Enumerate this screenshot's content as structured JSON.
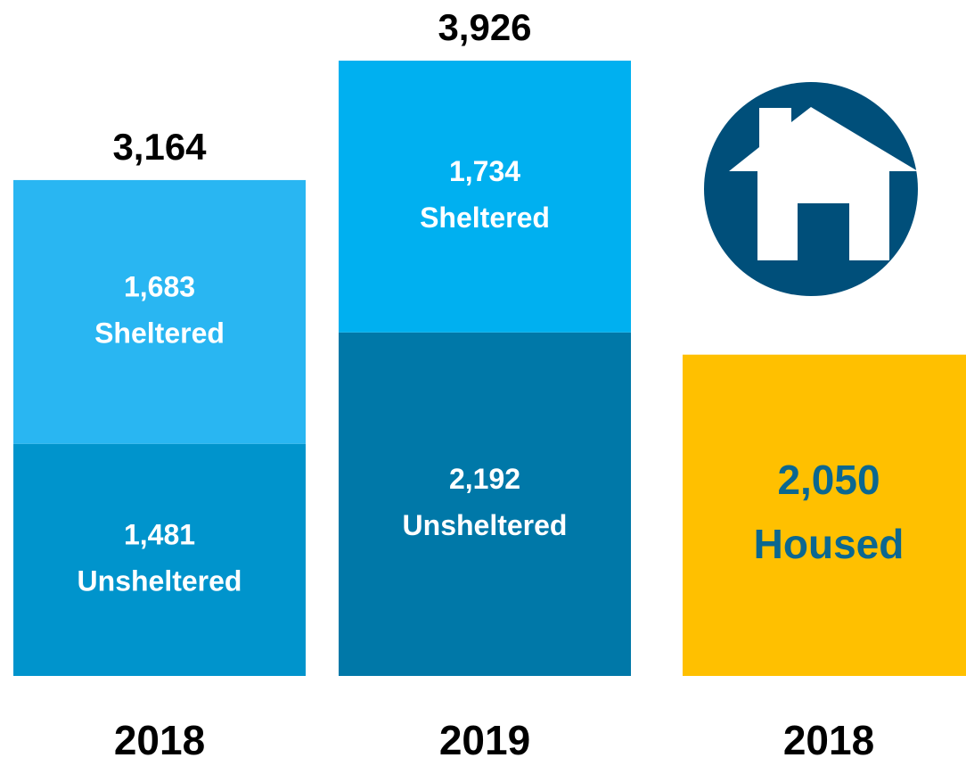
{
  "chart_data": {
    "type": "stacked_bar",
    "categories": [
      "2018",
      "2019",
      "2018"
    ],
    "series": [
      {
        "name": "Unsheltered",
        "colors": [
          "#0094cc",
          "#0078a8",
          null
        ],
        "values": [
          1481,
          2192,
          null
        ],
        "value_labels": [
          "1,481",
          "2,192",
          null
        ]
      },
      {
        "name": "Sheltered",
        "colors": [
          "#29b6f2",
          "#00b0f0",
          null
        ],
        "values": [
          1683,
          1734,
          null
        ],
        "value_labels": [
          "1,683",
          "1,734",
          null
        ]
      },
      {
        "name": "Housed",
        "color": "#ffc000",
        "label_color": "#0b6790",
        "values": [
          null,
          null,
          2050
        ],
        "value_labels": [
          null,
          null,
          "2,050"
        ]
      }
    ],
    "totals": [
      {
        "value": 3164,
        "label": "3,164"
      },
      {
        "value": 3926,
        "label": "3,926"
      },
      null
    ]
  }
}
